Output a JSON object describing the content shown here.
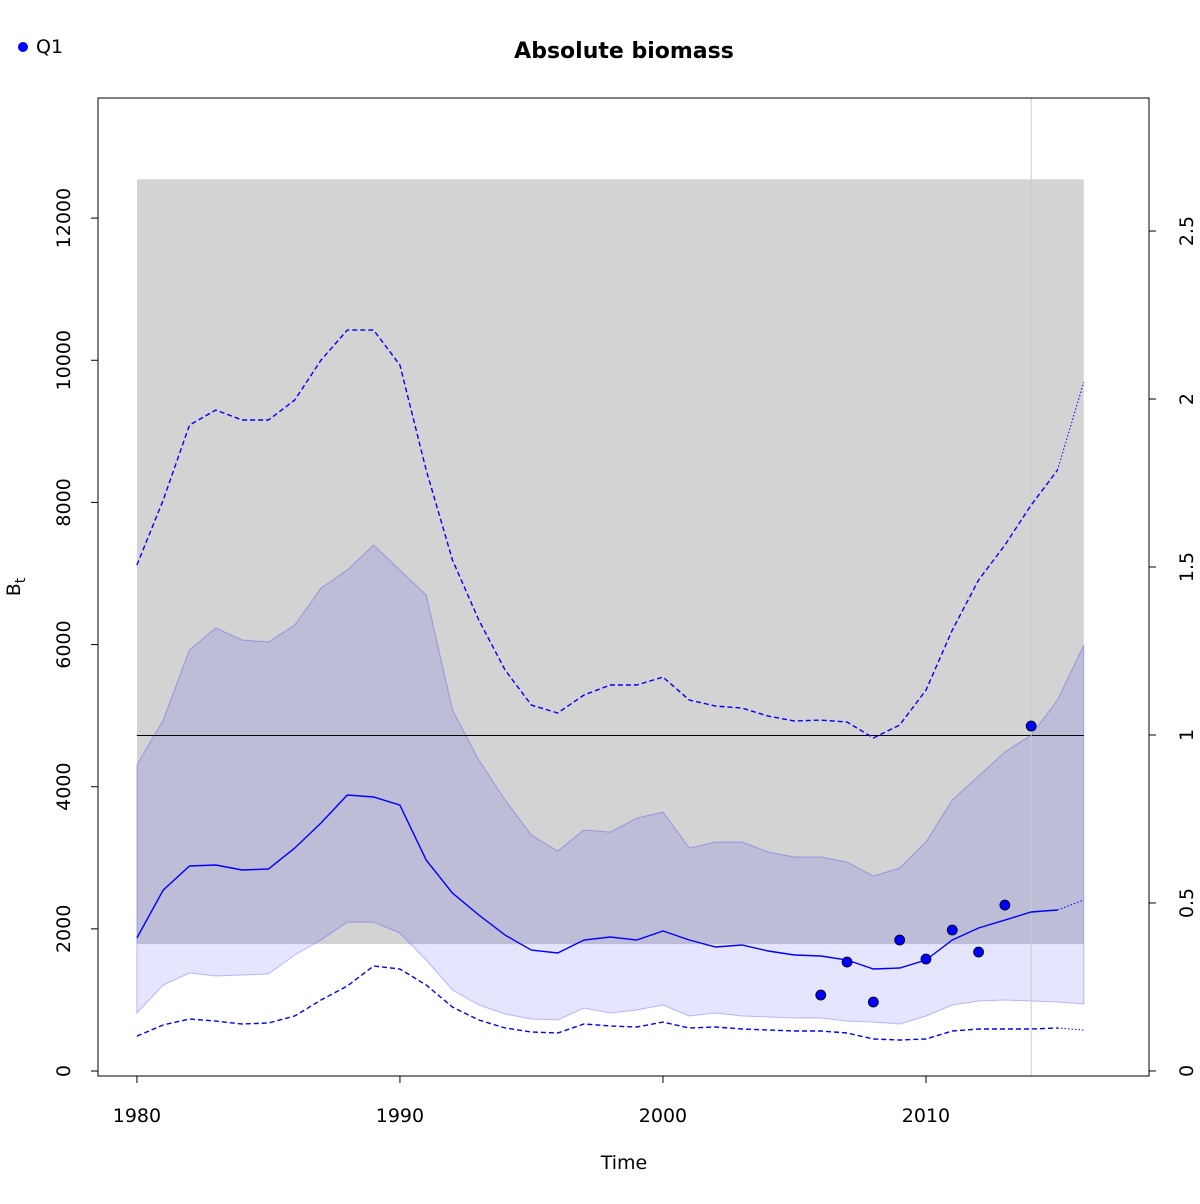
{
  "chart_data": {
    "type": "line",
    "title": "Absolute biomass",
    "xlabel": "Time",
    "ylabel": "B",
    "ylabel_sub": "t",
    "legend": "topleft",
    "x": [
      1980,
      1981,
      1982,
      1983,
      1984,
      1985,
      1986,
      1987,
      1988,
      1989,
      1990,
      1991,
      1992,
      1993,
      1994,
      1995,
      1996,
      1997,
      1998,
      1999,
      2000,
      2001,
      2002,
      2003,
      2004,
      2005,
      2006,
      2007,
      2008,
      2009,
      2010,
      2011,
      2012,
      2013,
      2014,
      2015,
      2016
    ],
    "xlim": [
      1978.52,
      2018.48
    ],
    "ylim": [
      -70,
      13690
    ],
    "y2lim": [
      -0.015,
      2.896
    ],
    "xticks": [
      1980,
      1990,
      2000,
      2010
    ],
    "yticks": [
      0,
      2000,
      4000,
      6000,
      8000,
      10000,
      12000
    ],
    "y2ticks": [
      0,
      0.5,
      1,
      1.5,
      2,
      2.5
    ],
    "rect": {
      "color": "#d3d3d3",
      "x": [
        1980,
        2016
      ],
      "y": [
        1786,
        12546
      ]
    },
    "hline": {
      "value": 4720,
      "color": "#000000"
    },
    "vline": {
      "value": 2014,
      "color": "#cccccc"
    },
    "band": {
      "color": "#0000ff",
      "upper": [
        4305,
        4938,
        5923,
        6233,
        6064,
        6036,
        6275,
        6795,
        7048,
        7400,
        7048,
        6697,
        5079,
        4375,
        3813,
        3320,
        3095,
        3391,
        3362,
        3559,
        3644,
        3137,
        3222,
        3222,
        3081,
        3011,
        3011,
        2940,
        2743,
        2856,
        3222,
        3813,
        4150,
        4488,
        4727,
        5220,
        5993
      ],
      "lower": [
        816,
        1210,
        1379,
        1337,
        1351,
        1365,
        1632,
        1843,
        2096,
        2096,
        1941,
        1562,
        1140,
        929,
        802,
        732,
        718,
        886,
        816,
        858,
        929,
        774,
        816,
        774,
        760,
        746,
        746,
        703,
        689,
        661,
        774,
        929,
        985,
        999,
        985,
        971,
        943
      ]
    },
    "series": [
      {
        "color": "#0000ff",
        "style": "solid",
        "values": [
          1871,
          2546,
          2884,
          2898,
          2828,
          2842,
          3137,
          3489,
          3883,
          3855,
          3742,
          2968,
          2504,
          2195,
          1913,
          1702,
          1660,
          1843,
          1885,
          1843,
          1970,
          1843,
          1745,
          1773,
          1688,
          1632,
          1618,
          1562,
          1435,
          1449,
          1562,
          1843,
          2012,
          2124,
          2237,
          2265,
          null
        ]
      },
      {
        "color": "#0000ff",
        "style": "dotted",
        "values": [
          null,
          null,
          null,
          null,
          null,
          null,
          null,
          null,
          null,
          null,
          null,
          null,
          null,
          null,
          null,
          null,
          null,
          null,
          null,
          null,
          null,
          null,
          null,
          null,
          null,
          null,
          null,
          null,
          null,
          null,
          null,
          null,
          null,
          null,
          null,
          2265,
          2406
        ]
      },
      {
        "color": "#0000ff",
        "style": "dashed",
        "values": [
          7119,
          8033,
          9088,
          9300,
          9159,
          9159,
          9440,
          10003,
          10425,
          10425,
          9933,
          8455,
          7189,
          6345,
          5642,
          5149,
          5037,
          5290,
          5431,
          5431,
          5543,
          5220,
          5135,
          5107,
          4994,
          4924,
          4938,
          4910,
          4685,
          4868,
          5360,
          6204,
          6908,
          7400,
          7963,
          8455,
          null
        ]
      },
      {
        "color": "#0000ff",
        "style": "dotted",
        "values": [
          null,
          null,
          null,
          null,
          null,
          null,
          null,
          null,
          null,
          null,
          null,
          null,
          null,
          null,
          null,
          null,
          null,
          null,
          null,
          null,
          null,
          null,
          null,
          null,
          null,
          null,
          null,
          null,
          null,
          null,
          null,
          null,
          null,
          null,
          null,
          8455,
          9693
        ]
      },
      {
        "color": "#0000ff",
        "style": "dashed",
        "values": [
          492,
          647,
          732,
          703,
          661,
          675,
          774,
          999,
          1196,
          1477,
          1435,
          1210,
          900,
          718,
          605,
          549,
          535,
          661,
          633,
          619,
          689,
          605,
          619,
          591,
          577,
          563,
          563,
          535,
          450,
          436,
          450,
          563,
          591,
          591,
          591,
          605,
          null
        ]
      },
      {
        "color": "#0000ff",
        "style": "dotted",
        "values": [
          null,
          null,
          null,
          null,
          null,
          null,
          null,
          null,
          null,
          null,
          null,
          null,
          null,
          null,
          null,
          null,
          null,
          null,
          null,
          null,
          null,
          null,
          null,
          null,
          null,
          null,
          null,
          null,
          null,
          null,
          null,
          null,
          null,
          null,
          null,
          605,
          577
        ]
      },
      {
        "name": "Q1",
        "color": "#0000ff",
        "style": "points",
        "x": [
          2006,
          2007,
          2008,
          2009,
          2010,
          2011,
          2012,
          2013,
          2014
        ],
        "values": [
          1069,
          1533,
          971,
          1843,
          1576,
          1984,
          1674,
          2335,
          4854
        ]
      }
    ]
  }
}
